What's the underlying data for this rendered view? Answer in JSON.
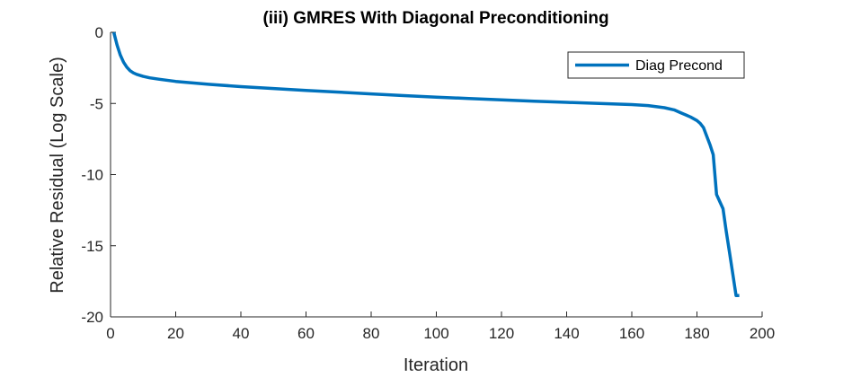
{
  "chart_data": {
    "type": "line",
    "title": "(iii) GMRES With Diagonal Preconditioning",
    "xlabel": "Iteration",
    "ylabel": "Relative Residual (Log Scale)",
    "xlim": [
      0,
      200
    ],
    "ylim": [
      -20,
      0
    ],
    "xticks": [
      0,
      20,
      40,
      60,
      80,
      100,
      120,
      140,
      160,
      180,
      200
    ],
    "yticks": [
      0,
      -5,
      -10,
      -15,
      -20
    ],
    "grid": false,
    "legend_position": "top-right",
    "series": [
      {
        "name": "Diag Precond",
        "color": "#0072bd",
        "x": [
          1,
          2,
          3,
          4,
          5,
          6,
          7,
          8,
          10,
          12,
          15,
          20,
          30,
          40,
          50,
          60,
          70,
          80,
          90,
          100,
          110,
          120,
          130,
          140,
          150,
          160,
          165,
          170,
          173,
          175,
          178,
          180,
          181,
          182,
          183,
          184,
          185,
          186,
          187,
          188,
          189,
          190,
          191,
          192,
          193
        ],
        "y": [
          0,
          -0.9,
          -1.6,
          -2.1,
          -2.45,
          -2.7,
          -2.85,
          -2.95,
          -3.1,
          -3.2,
          -3.3,
          -3.45,
          -3.65,
          -3.82,
          -3.95,
          -4.08,
          -4.2,
          -4.33,
          -4.45,
          -4.56,
          -4.65,
          -4.75,
          -4.84,
          -4.92,
          -5.0,
          -5.08,
          -5.15,
          -5.3,
          -5.45,
          -5.65,
          -5.95,
          -6.2,
          -6.4,
          -6.7,
          -7.3,
          -7.9,
          -8.6,
          -11.4,
          -11.9,
          -12.4,
          -14.0,
          -15.5,
          -17.0,
          -18.5,
          -18.5
        ]
      }
    ]
  }
}
